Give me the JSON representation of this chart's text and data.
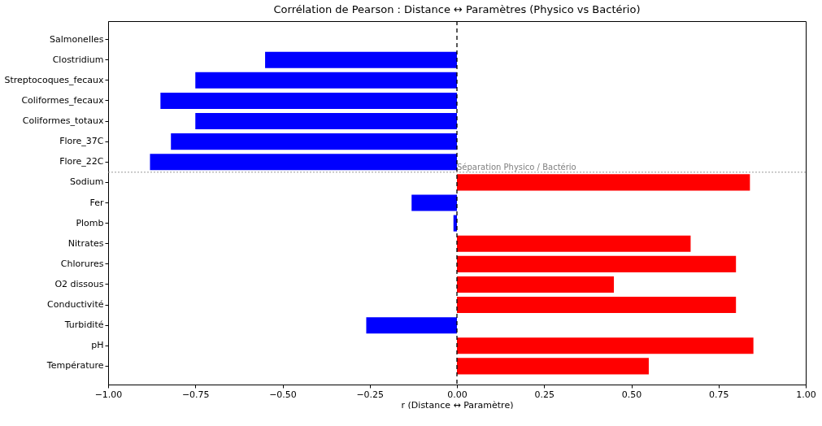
{
  "chart_data": {
    "type": "bar",
    "orientation": "horizontal",
    "title": "Corrélation de Pearson : Distance ↔ Paramètres (Physico vs Bactério)",
    "xlabel": "r (Distance ↔ Paramètre)",
    "categories": [
      "Salmonelles",
      "Clostridium",
      "Streptocoques_fecaux",
      "Coliformes_fecaux",
      "Coliformes_totaux",
      "Flore_37C",
      "Flore_22C",
      "Sodium",
      "Fer",
      "Plomb",
      "Nitrates",
      "Chlorures",
      "O2 dissous",
      "Conductivité",
      "Turbidité",
      "pH",
      "Température"
    ],
    "values": [
      null,
      -0.55,
      -0.75,
      -0.85,
      -0.75,
      -0.82,
      -0.88,
      0.84,
      -0.13,
      -0.01,
      0.67,
      0.8,
      0.45,
      0.8,
      -0.26,
      0.85,
      0.55
    ],
    "colors": [
      null,
      "#0000ff",
      "#0000ff",
      "#0000ff",
      "#0000ff",
      "#0000ff",
      "#0000ff",
      "#ff0000",
      "#0000ff",
      "#0000ff",
      "#ff0000",
      "#ff0000",
      "#ff0000",
      "#ff0000",
      "#0000ff",
      "#ff0000",
      "#ff0000"
    ],
    "xlim": [
      -1,
      1
    ],
    "xticks": [
      {
        "value": -1,
        "label": "−1.00"
      },
      {
        "value": -0.75,
        "label": "−0.75"
      },
      {
        "value": -0.5,
        "label": "−0.50"
      },
      {
        "value": -0.25,
        "label": "−0.25"
      },
      {
        "value": 0,
        "label": "0.00"
      },
      {
        "value": 0.25,
        "label": "0.25"
      },
      {
        "value": 0.5,
        "label": "0.50"
      },
      {
        "value": 0.75,
        "label": "0.75"
      },
      {
        "value": 1,
        "label": "1.00"
      }
    ],
    "ref_lines": [
      {
        "axis": "x",
        "value": 0,
        "label": null,
        "color": "#000000",
        "line_style": "dashed"
      },
      {
        "axis": "y",
        "value": "Flore_22C",
        "label": "Séparation Physico / Bactério",
        "color": "#999999",
        "line_style": "dotted"
      }
    ],
    "grid": false
  }
}
